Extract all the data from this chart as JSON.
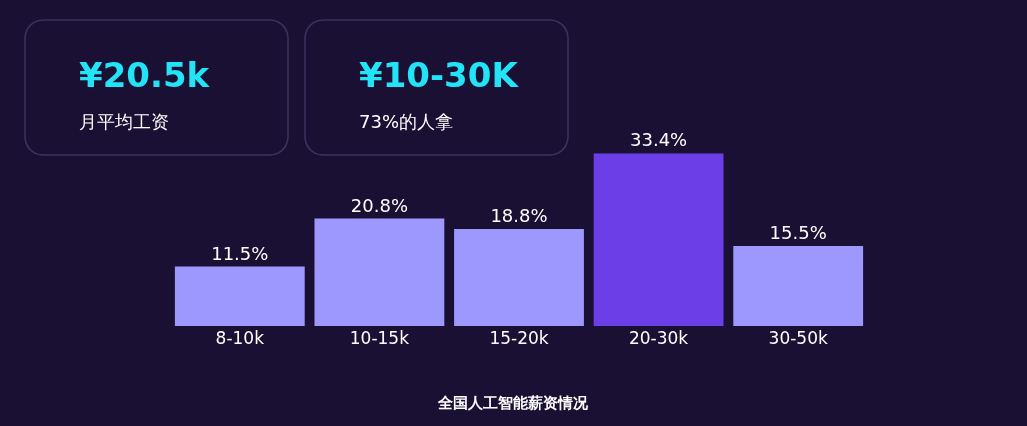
{
  "chart_data": {
    "type": "bar",
    "title": "全国人工智能薪资情况",
    "categories": [
      "8-10k",
      "10-15k",
      "15-20k",
      "20-30k",
      "30-50k"
    ],
    "values": [
      11.5,
      20.8,
      18.8,
      33.4,
      15.5
    ],
    "value_labels": [
      "11.5%",
      "20.8%",
      "18.8%",
      "33.4%",
      "15.5%"
    ],
    "colors": [
      "#9d98fe",
      "#9d98fe",
      "#9d98fe",
      "#6c3ee8",
      "#9d98fe"
    ],
    "annotations": [
      "¥20.5k",
      "月平均工资",
      "¥10-30K",
      "73%的人拿"
    ]
  }
}
